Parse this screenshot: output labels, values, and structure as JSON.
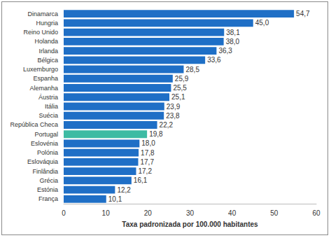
{
  "chart_data": {
    "type": "bar",
    "orientation": "horizontal",
    "x_label": "Taxa padronizada por 100.000 habitantes",
    "categories": [
      "Dinamarca",
      "Hungria",
      "Reino Unido",
      "Holanda",
      "Irlanda",
      "Bélgica",
      "Luxemburgo",
      "Espanha",
      "Alemanha",
      "Áustria",
      "Itália",
      "Suécia",
      "República Checa",
      "Portugal",
      "Eslovénia",
      "Polónia",
      "Eslováquia",
      "Finlândia",
      "Grécia",
      "Estónia",
      "França"
    ],
    "values": [
      54.7,
      45.0,
      38.1,
      38.0,
      36.3,
      33.6,
      28.5,
      25.9,
      25.5,
      25.1,
      23.9,
      23.8,
      22.2,
      19.8,
      18.0,
      17.8,
      17.7,
      17.2,
      16.1,
      12.2,
      10.1
    ],
    "value_labels": [
      "54,7",
      "45,0",
      "38,1",
      "38,0",
      "36,3",
      "33,6",
      "28,5",
      "25,9",
      "25,5",
      "25,1",
      "23,9",
      "23,8",
      "22,2",
      "19,8",
      "18,0",
      "17,8",
      "17,7",
      "17,2",
      "16,1",
      "12,2",
      "10,1"
    ],
    "colors": [
      "#1f6fc6",
      "#1f6fc6",
      "#1f6fc6",
      "#1f6fc6",
      "#1f6fc6",
      "#1f6fc6",
      "#1f6fc6",
      "#1f6fc6",
      "#1f6fc6",
      "#1f6fc6",
      "#1f6fc6",
      "#1f6fc6",
      "#1f6fc6",
      "#3dbba3",
      "#1f6fc6",
      "#1f6fc6",
      "#1f6fc6",
      "#1f6fc6",
      "#1f6fc6",
      "#1f6fc6",
      "#1f6fc6"
    ],
    "xlim": [
      0,
      60
    ],
    "xticks": [
      0,
      10,
      20,
      30,
      40,
      50,
      60
    ],
    "grid": false,
    "data_labels": true
  }
}
